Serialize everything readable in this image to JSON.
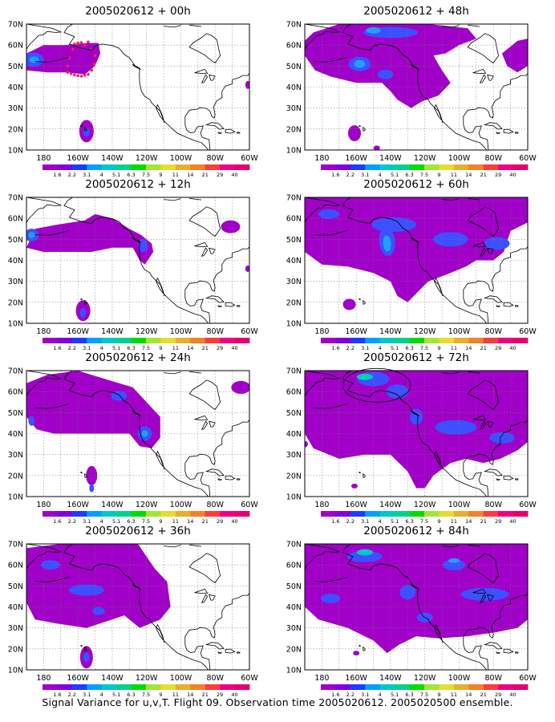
{
  "caption": "Signal Variance for u,v,T. Flight 09. Observation time 2005020612. 2005020500 ensemble.",
  "panels": [
    {
      "title": "2005020612 + 00h",
      "hour": "00h"
    },
    {
      "title": "2005020612 + 48h",
      "hour": "48h"
    },
    {
      "title": "2005020612 + 12h",
      "hour": "12h"
    },
    {
      "title": "2005020612 + 60h",
      "hour": "60h"
    },
    {
      "title": "2005020612 + 24h",
      "hour": "24h"
    },
    {
      "title": "2005020612 + 72h",
      "hour": "72h"
    },
    {
      "title": "2005020612 + 36h",
      "hour": "36h"
    },
    {
      "title": "2005020612 + 84h",
      "hour": "84h"
    }
  ],
  "axes": {
    "y_ticks": [
      "10N",
      "20N",
      "30N",
      "40N",
      "50N",
      "60N",
      "70N"
    ],
    "x_ticks": [
      "180",
      "160W",
      "140W",
      "120W",
      "100W",
      "80W",
      "60W"
    ]
  },
  "colorbar": {
    "labels": [
      "1.6",
      "2.2",
      "3.1",
      "4",
      "5.1",
      "6.3",
      "7.5",
      "9",
      "11",
      "14",
      "21",
      "29",
      "40"
    ],
    "colors": [
      "#a000c8",
      "#8200dc",
      "#1e3cff",
      "#00a0ff",
      "#00c8c8",
      "#00d28c",
      "#00dc00",
      "#a0e632",
      "#e6dc32",
      "#e6af2d",
      "#f08228",
      "#fa3c3c",
      "#f00082",
      "#e6006e"
    ]
  },
  "map_colors": {
    "level1": "#a000c8",
    "level2": "#8c1ee6",
    "level3": "#3c50ff",
    "level4": "#1ea0ff",
    "level5": "#00c8c8",
    "level6": "#00dc8c",
    "marker": "#ff1e50"
  }
}
